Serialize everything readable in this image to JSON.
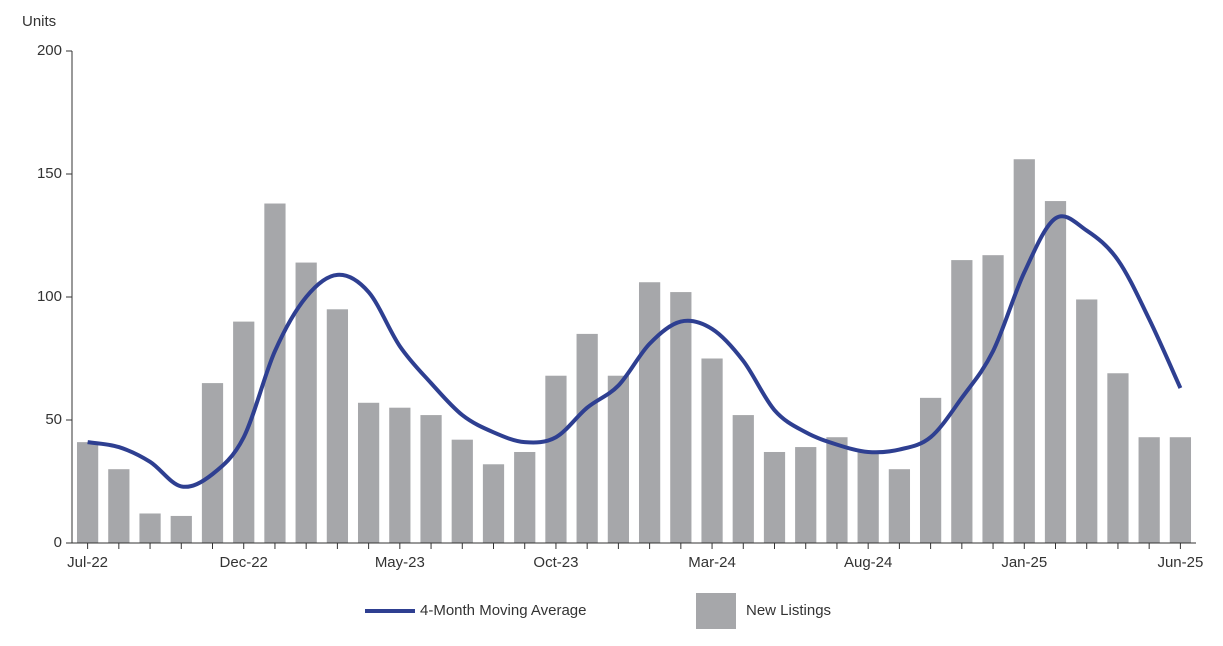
{
  "chart_data": {
    "type": "bar_line",
    "y_label": "Units",
    "categories": [
      "Jul-22",
      null,
      null,
      null,
      null,
      "Dec-22",
      null,
      null,
      null,
      null,
      "May-23",
      null,
      null,
      null,
      null,
      "Oct-23",
      null,
      null,
      null,
      null,
      "Mar-24",
      null,
      null,
      null,
      null,
      "Aug-24",
      null,
      null,
      null,
      null,
      "Jan-25",
      null,
      null,
      null,
      null,
      "Jun-25"
    ],
    "series": [
      {
        "name": "4-Month Moving Average",
        "type": "line",
        "color": "#2e3f91",
        "values": [
          41,
          39,
          33,
          23,
          28,
          43,
          78,
          100,
          109,
          102,
          80,
          65,
          52,
          45,
          41,
          43,
          55,
          64,
          81,
          90,
          87,
          74,
          54,
          45,
          40,
          37,
          38,
          43,
          59,
          78,
          110,
          132,
          127,
          115,
          91,
          63
        ]
      },
      {
        "name": "New Listings",
        "type": "bar",
        "color": "#a6a7aa",
        "values": [
          41,
          30,
          12,
          11,
          65,
          90,
          138,
          114,
          95,
          57,
          55,
          52,
          42,
          32,
          37,
          68,
          85,
          68,
          106,
          102,
          75,
          52,
          37,
          39,
          43,
          37,
          30,
          59,
          115,
          117,
          156,
          139,
          99,
          69,
          43,
          43
        ]
      }
    ],
    "ylim": [
      0,
      200
    ],
    "yticks": [
      0,
      50,
      100,
      150,
      200
    ]
  }
}
